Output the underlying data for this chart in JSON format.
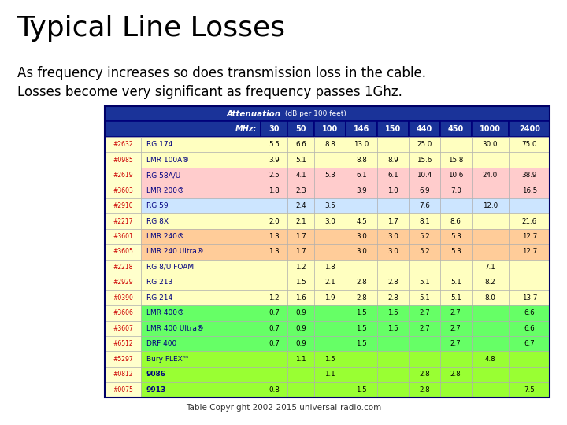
{
  "title": "Typical Line Losses",
  "subtitle_line1": "As frequency increases so does transmission loss in the cable.",
  "subtitle_line2": "Losses become very significant as frequency passes 1Ghz.",
  "copyright": "Table Copyright 2002-2015 universal-radio.com",
  "freq_headers": [
    "MHz:",
    "30",
    "50",
    "100",
    "146",
    "150",
    "440",
    "450",
    "1000",
    "2400"
  ],
  "rows": [
    {
      "id": "#2632",
      "name": "RG 174",
      "bold": false,
      "bg": "#ffffc0",
      "vals": [
        "5.5",
        "6.6",
        "8.8",
        "13.0",
        "",
        "25.0",
        "",
        "30.0",
        "75.0"
      ]
    },
    {
      "id": "#0985",
      "name": "LMR 100A®",
      "bold": false,
      "bg": "#ffffc0",
      "vals": [
        "3.9",
        "5.1",
        "",
        "8.8",
        "8.9",
        "15.6",
        "15.8",
        "",
        ""
      ]
    },
    {
      "id": "#2619",
      "name": "RG 58A/U",
      "bold": false,
      "bg": "#ffcccc",
      "vals": [
        "2.5",
        "4.1",
        "5.3",
        "6.1",
        "6.1",
        "10.4",
        "10.6",
        "24.0",
        "38.9"
      ]
    },
    {
      "id": "#3603",
      "name": "LMR 200®",
      "bold": false,
      "bg": "#ffcccc",
      "vals": [
        "1.8",
        "2.3",
        "",
        "3.9",
        "1.0",
        "6.9",
        "7.0",
        "",
        "16.5"
      ]
    },
    {
      "id": "#2910",
      "name": "RG 59",
      "bold": false,
      "bg": "#cce5ff",
      "vals": [
        "",
        "2.4",
        "3.5",
        "",
        "",
        "7.6",
        "",
        "12.0",
        ""
      ]
    },
    {
      "id": "#2217",
      "name": "RG 8X",
      "bold": false,
      "bg": "#ffffc0",
      "vals": [
        "2.0",
        "2.1",
        "3.0",
        "4.5",
        "1.7",
        "8.1",
        "8.6",
        "",
        "21.6"
      ]
    },
    {
      "id": "#3601",
      "name": "LMR 240®",
      "bold": false,
      "bg": "#ffcc99",
      "vals": [
        "1.3",
        "1.7",
        "",
        "3.0",
        "3.0",
        "5.2",
        "5.3",
        "",
        "12.7"
      ]
    },
    {
      "id": "#3605",
      "name": "LMR 240 Ultra®",
      "bold": false,
      "bg": "#ffcc99",
      "vals": [
        "1.3",
        "1.7",
        "",
        "3.0",
        "3.0",
        "5.2",
        "5.3",
        "",
        "12.7"
      ]
    },
    {
      "id": "#2218",
      "name": "RG 8/U FOAM",
      "bold": false,
      "bg": "#ffffc0",
      "vals": [
        "",
        "1.2",
        "1.8",
        "",
        "",
        "",
        "",
        "7.1",
        ""
      ]
    },
    {
      "id": "#2929",
      "name": "RG 213",
      "bold": false,
      "bg": "#ffffc0",
      "vals": [
        "",
        "1.5",
        "2.1",
        "2.8",
        "2.8",
        "5.1",
        "5.1",
        "8.2",
        ""
      ]
    },
    {
      "id": "#0390",
      "name": "RG 214",
      "bold": false,
      "bg": "#ffffc0",
      "vals": [
        "1.2",
        "1.6",
        "1.9",
        "2.8",
        "2.8",
        "5.1",
        "5.1",
        "8.0",
        "13.7"
      ]
    },
    {
      "id": "#3606",
      "name": "LMR 400®",
      "bold": false,
      "bg": "#66ff66",
      "vals": [
        "0.7",
        "0.9",
        "",
        "1.5",
        "1.5",
        "2.7",
        "2.7",
        "",
        "6.6"
      ]
    },
    {
      "id": "#3607",
      "name": "LMR 400 Ultra®",
      "bold": false,
      "bg": "#66ff66",
      "vals": [
        "0.7",
        "0.9",
        "",
        "1.5",
        "1.5",
        "2.7",
        "2.7",
        "",
        "6.6"
      ]
    },
    {
      "id": "#6512",
      "name": "DRF 400",
      "bold": false,
      "bg": "#66ff66",
      "vals": [
        "0.7",
        "0.9",
        "",
        "1.5",
        "",
        "",
        "2.7",
        "",
        "6.7"
      ]
    },
    {
      "id": "#5297",
      "name": "Bury FLEX™",
      "bold": false,
      "bg": "#99ff33",
      "vals": [
        "",
        "1.1",
        "1.5",
        "",
        "",
        "",
        "",
        "4.8",
        ""
      ]
    },
    {
      "id": "#0812",
      "name": "9086",
      "bold": true,
      "bg": "#99ff33",
      "vals": [
        "",
        "",
        "1.1",
        "",
        "",
        "2.8",
        "2.8",
        "",
        ""
      ]
    },
    {
      "id": "#0075",
      "name": "9913",
      "bold": true,
      "bg": "#99ff33",
      "vals": [
        "0.8",
        "",
        "",
        "1.5",
        "",
        "2.8",
        "",
        "",
        "7.5"
      ]
    }
  ],
  "header_bg": "#1a3399",
  "title_fontsize": 26,
  "subtitle_fontsize": 12,
  "fig_w": 7.2,
  "fig_h": 5.4
}
